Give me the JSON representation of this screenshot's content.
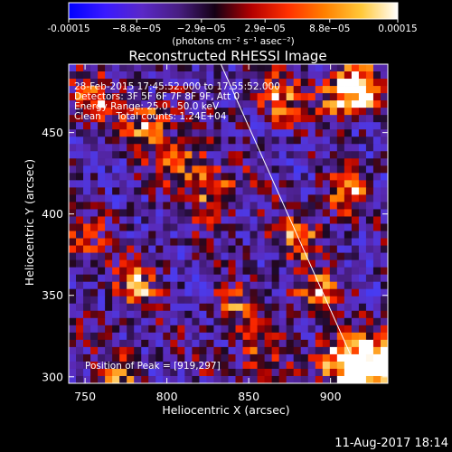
{
  "colorbar": {
    "tick_labels": [
      "-0.00015",
      "−8.8e−05",
      "−2.9e−05",
      "2.9e−05",
      "8.8e−05",
      "0.00015"
    ],
    "tick_values": [
      -0.00015,
      -8.8e-05,
      -2.9e-05,
      2.9e-05,
      8.8e-05,
      0.00015
    ],
    "range": [
      -0.00015,
      0.00015
    ],
    "unit_label": "(photons cm⁻² s⁻¹ asec⁻²)",
    "colors": [
      "#0000ff",
      "#3a1aff",
      "#5a28c8",
      "#481e82",
      "#140014",
      "#b40000",
      "#ff3000",
      "#ff8000",
      "#ffc838",
      "#ffffff"
    ]
  },
  "chart_data": {
    "type": "heatmap",
    "title": "Reconstructed RHESSI Image",
    "xlabel": "Heliocentric X (arcsec)",
    "ylabel": "Heliocentric Y (arcsec)",
    "xlim": [
      740,
      935
    ],
    "ylim": [
      296,
      492
    ],
    "xticks": [
      750,
      800,
      850,
      900
    ],
    "yticks": [
      300,
      350,
      400,
      450
    ],
    "limb_line": [
      [
        833,
        492
      ],
      [
        920,
        296
      ]
    ],
    "peak": [
      919,
      297
    ],
    "hot_spots": [
      {
        "x": 920,
        "y": 300,
        "intensity": 1.0
      },
      {
        "x": 905,
        "y": 310,
        "intensity": 0.75
      },
      {
        "x": 930,
        "y": 315,
        "intensity": 0.7
      },
      {
        "x": 918,
        "y": 477,
        "intensity": 0.9
      },
      {
        "x": 905,
        "y": 470,
        "intensity": 0.55
      },
      {
        "x": 870,
        "y": 470,
        "intensity": 0.6
      },
      {
        "x": 755,
        "y": 470,
        "intensity": 0.55
      },
      {
        "x": 790,
        "y": 455,
        "intensity": 0.6
      },
      {
        "x": 810,
        "y": 430,
        "intensity": 0.55
      },
      {
        "x": 830,
        "y": 412,
        "intensity": 0.65
      },
      {
        "x": 910,
        "y": 412,
        "intensity": 0.55
      },
      {
        "x": 880,
        "y": 385,
        "intensity": 0.6
      },
      {
        "x": 890,
        "y": 350,
        "intensity": 0.55
      },
      {
        "x": 780,
        "y": 355,
        "intensity": 0.6
      },
      {
        "x": 745,
        "y": 385,
        "intensity": 0.5
      },
      {
        "x": 770,
        "y": 300,
        "intensity": 0.5
      },
      {
        "x": 840,
        "y": 340,
        "intensity": 0.45
      },
      {
        "x": 855,
        "y": 312,
        "intensity": 0.45
      }
    ]
  },
  "annotations": {
    "time_range": "28-Feb-2015 17:45:52.000 to 17:55:52.000",
    "detectors": "Detectors: 3F 5F 6F 7F 8F 9F, Att 0",
    "energy_range": "Energy Range: 25.0 - 50.0 keV",
    "clean_counts": "Clean     Total counts: 1.24E+04",
    "peak_position": "Position of Peak = [919,297]"
  },
  "footer": {
    "date": "11-Aug-2017 18:14"
  }
}
